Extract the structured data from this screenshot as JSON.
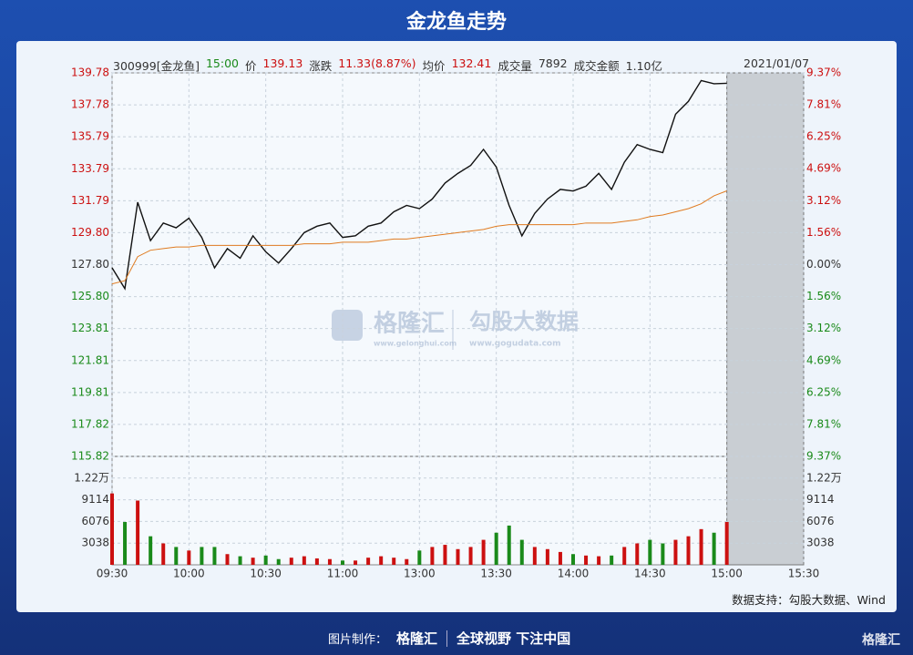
{
  "page_title": "金龙鱼走势",
  "info": [
    {
      "text": "300999[金龙鱼]",
      "color": "#333333"
    },
    {
      "text": "15:00",
      "color": "#1a8a1a"
    },
    {
      "text": "价",
      "color": "#333333"
    },
    {
      "text": "139.13",
      "color": "#cc1010"
    },
    {
      "text": "涨跌",
      "color": "#333333"
    },
    {
      "text": "11.33(8.87%)",
      "color": "#cc1010"
    },
    {
      "text": "均价",
      "color": "#333333"
    },
    {
      "text": "132.41",
      "color": "#cc1010"
    },
    {
      "text": "成交量",
      "color": "#333333"
    },
    {
      "text": "7892",
      "color": "#333333"
    },
    {
      "text": "成交金额",
      "color": "#333333"
    },
    {
      "text": "1.10亿",
      "color": "#333333"
    }
  ],
  "date": "2021/01/07",
  "watermark": {
    "brand1": "格隆汇",
    "url1": "www.gelonghui.com",
    "brand2": "勾股大数据",
    "url2": "www.gogudata.com"
  },
  "source": "数据支持：勾股大数据、Wind",
  "footer": {
    "made_by": "图片制作：",
    "brand": "格隆汇",
    "slogan": "全球视野 下注中国",
    "logo": "格隆汇"
  },
  "chart_data": {
    "type": "line",
    "x": [
      0,
      5,
      10,
      15,
      20,
      25,
      30,
      35,
      40,
      45,
      50,
      55,
      60,
      65,
      70,
      75,
      80,
      85,
      90,
      95,
      100,
      105,
      110,
      115,
      120,
      125,
      130,
      135,
      140,
      145,
      150,
      155,
      160,
      165,
      170,
      175,
      180,
      185,
      190,
      195,
      200,
      205,
      210,
      215,
      220,
      225,
      230,
      235,
      240
    ],
    "xlim": [
      0,
      270
    ],
    "xticks": [
      {
        "value": 0,
        "label": "09:30"
      },
      {
        "value": 30,
        "label": "10:00"
      },
      {
        "value": 60,
        "label": "10:30"
      },
      {
        "value": 90,
        "label": "11:00"
      },
      {
        "value": 120,
        "label": "13:00"
      },
      {
        "value": 150,
        "label": "13:30"
      },
      {
        "value": 180,
        "label": "14:00"
      },
      {
        "value": 210,
        "label": "14:30"
      },
      {
        "value": 240,
        "label": "15:00"
      },
      {
        "value": 270,
        "label": "15:30"
      }
    ],
    "ylim": [
      115.82,
      139.78
    ],
    "yticks": [
      139.78,
      137.78,
      135.79,
      133.79,
      131.79,
      {
        "value": 129.8,
        "label": "129.80"
      },
      {
        "value": 127.8,
        "label": "127.80"
      },
      {
        "value": 125.8,
        "label": "125.80"
      },
      123.81,
      121.81,
      119.81,
      117.82,
      115.82
    ],
    "y2lim": [
      -9.37,
      9.37
    ],
    "y2ticks": [
      {
        "value": 9.37,
        "label": "9.37%"
      },
      {
        "value": 7.81,
        "label": "7.81%"
      },
      {
        "value": 6.25,
        "label": "6.25%"
      },
      {
        "value": 4.69,
        "label": "4.69%"
      },
      {
        "value": 3.12,
        "label": "3.12%"
      },
      {
        "value": 1.56,
        "label": "1.56%"
      },
      {
        "value": 0,
        "label": "0.00%"
      },
      {
        "value": -1.56,
        "label": "1.56%"
      },
      {
        "value": -3.12,
        "label": "3.12%"
      },
      {
        "value": -4.69,
        "label": "4.69%"
      },
      {
        "value": -6.25,
        "label": "6.25%"
      },
      {
        "value": -7.81,
        "label": "7.81%"
      },
      {
        "value": -9.37,
        "label": "9.37%"
      }
    ],
    "up_color": "#cc1010",
    "down_color": "#1a8a1a",
    "flat_color": "#333333",
    "grid": true,
    "series": [
      {
        "name": "价格",
        "color": "#111111",
        "values": [
          127.6,
          126.3,
          131.7,
          129.3,
          130.4,
          130.1,
          130.7,
          129.5,
          127.6,
          128.8,
          128.2,
          129.6,
          128.6,
          127.9,
          128.8,
          129.8,
          130.2,
          130.4,
          129.5,
          129.6,
          130.2,
          130.4,
          131.1,
          131.5,
          131.3,
          131.9,
          132.9,
          133.5,
          134.0,
          135.0,
          133.9,
          131.5,
          129.6,
          131.0,
          131.9,
          132.5,
          132.4,
          132.7,
          133.5,
          132.5,
          134.2,
          135.3,
          135.0,
          134.8,
          137.2,
          138.0,
          139.3,
          139.1,
          139.13
        ]
      },
      {
        "name": "均价",
        "color": "#e07b20",
        "values": [
          126.6,
          126.8,
          128.3,
          128.7,
          128.8,
          128.9,
          128.9,
          129.0,
          129.0,
          129.0,
          129.0,
          129.0,
          129.0,
          129.0,
          129.0,
          129.1,
          129.1,
          129.1,
          129.2,
          129.2,
          129.2,
          129.3,
          129.4,
          129.4,
          129.5,
          129.6,
          129.7,
          129.8,
          129.9,
          130.0,
          130.2,
          130.3,
          130.3,
          130.3,
          130.3,
          130.3,
          130.3,
          130.4,
          130.4,
          130.4,
          130.5,
          130.6,
          130.8,
          130.9,
          131.1,
          131.3,
          131.6,
          132.1,
          132.41
        ]
      }
    ],
    "volume": {
      "ylim": [
        0,
        15190
      ],
      "yticks": [
        3038,
        6076,
        9114,
        {
          "value": 12152,
          "label": "1.22万"
        }
      ],
      "values": [
        10000,
        6000,
        9000,
        4000,
        3000,
        2500,
        2000,
        2500,
        2500,
        1500,
        1200,
        1000,
        1300,
        800,
        1000,
        1200,
        900,
        800,
        600,
        600,
        1000,
        1200,
        1000,
        800,
        2000,
        2500,
        2800,
        2200,
        2500,
        3500,
        4500,
        5500,
        3500,
        2500,
        2200,
        1800,
        1500,
        1300,
        1200,
        1300,
        2500,
        3000,
        3500,
        3000,
        3500,
        4000,
        5000,
        4500,
        6000
      ]
    }
  }
}
